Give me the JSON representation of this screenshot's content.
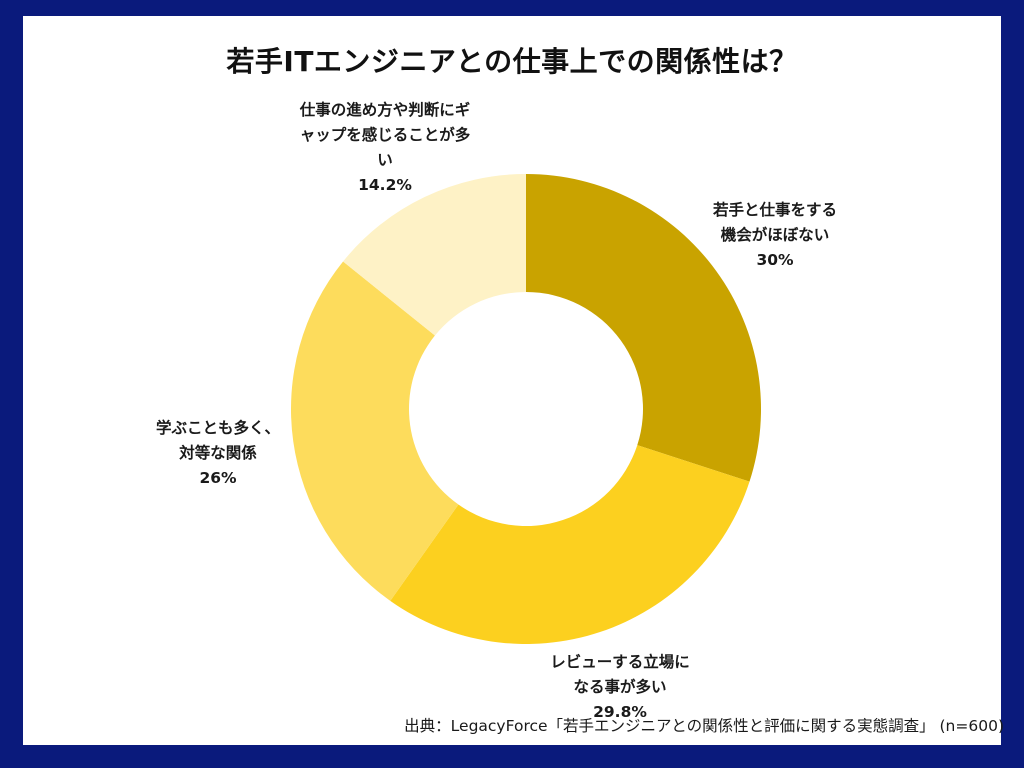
{
  "title": "若手ITエンジニアとの仕事上での関係性は？",
  "source": "出典：LegacyForce「若手エンジニアとの関係性と評価に関する実態調査」 (n=600)",
  "colors": {
    "border": "#0A1A7C",
    "background": "#FFFFFF"
  },
  "labels": {
    "s1": {
      "line1": "若手と仕事をする",
      "line2": "機会がほぼない",
      "value": "30%"
    },
    "s2": {
      "line1": "レビューする立場に",
      "line2": "なる事が多い",
      "value": "29.8%"
    },
    "s3": {
      "line1": "学ぶことも多く、",
      "line2": "対等な関係",
      "value": "26%"
    },
    "s4": {
      "line1": "仕事の進め方や判断にギ",
      "line2": "ャップを感じることが多",
      "line3": "い",
      "value": "14.2%"
    }
  },
  "chart_data": {
    "type": "pie",
    "subtype": "donut",
    "title": "若手ITエンジニアとの仕事上での関係性は？",
    "categories": [
      "若手と仕事をする機会がほぼない",
      "レビューする立場になる事が多い",
      "学ぶことも多く、対等な関係",
      "仕事の進め方や判断にギャップを感じることが多い"
    ],
    "values": [
      30,
      29.8,
      26,
      14.2
    ],
    "unit": "%",
    "colors": [
      "#C9A300",
      "#FCD01F",
      "#FDDC5C",
      "#FEF2C6"
    ],
    "start_angle": "12 o'clock",
    "direction": "clockwise",
    "legend": "none (inline data labels)",
    "annotation": "出典：LegacyForce「若手エンジニアとの関係性と評価に関する実態調査」 (n=600)",
    "sample_size": 600
  }
}
